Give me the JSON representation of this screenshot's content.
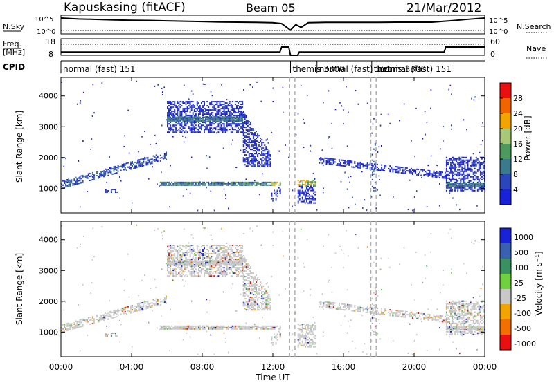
{
  "header": {
    "station": "Kapuskasing (fitACF)",
    "beam": "Beam 05",
    "date": "21/Mar/2012"
  },
  "noise_panel": {
    "left_label": "N.Sky",
    "right_label": "N.Search",
    "left_ticks": [
      "10^5",
      "10^0"
    ],
    "right_ticks": [
      "10^5",
      "10^0"
    ]
  },
  "freq_panel": {
    "left_label_line1": "Freq.",
    "left_label_line2": "[MHz]",
    "right_label": "Nave",
    "left_ticks": [
      "18",
      "8"
    ],
    "right_ticks": [
      "60",
      "0"
    ]
  },
  "cpid": {
    "label": "CPID",
    "segments": [
      {
        "text": "normal (fast) 151",
        "start_h": 0.0
      },
      {
        "text": "themis 3300",
        "start_h": 13.0
      },
      {
        "text": "normal (fast) 151",
        "start_h": 14.5
      },
      {
        "text": "themis 3300",
        "start_h": 17.6
      },
      {
        "text": "normal (fast) 151",
        "start_h": 17.9
      }
    ]
  },
  "x_axis": {
    "label": "Time UT",
    "range_hours": [
      0,
      24
    ],
    "tick_hours": [
      0,
      4,
      8,
      12,
      16,
      20,
      24
    ],
    "tick_labels": [
      "00:00",
      "04:00",
      "08:00",
      "12:00",
      "16:00",
      "20:00",
      "00:00"
    ]
  },
  "power_panel": {
    "ylabel": "Slant Range [km]",
    "yrange_km": [
      200,
      4600
    ],
    "yticks": [
      "1000",
      "2000",
      "3000",
      "4000"
    ],
    "cbar_label": "Power [dB]",
    "cbar_ticks": [
      "4",
      "8",
      "12",
      "16",
      "20",
      "24",
      "28"
    ],
    "cbar_colors": [
      "#1a22d8",
      "#2a46b8",
      "#3a7a8c",
      "#4e9a5c",
      "#a8c878",
      "#f2a400",
      "#f26400",
      "#e81010"
    ]
  },
  "velocity_panel": {
    "ylabel": "Slant Range [km]",
    "yrange_km": [
      200,
      4600
    ],
    "yticks": [
      "1000",
      "2000",
      "3000",
      "4000"
    ],
    "cbar_label": "Velocity [m s⁻¹]",
    "cbar_ticks": [
      "1000",
      "500",
      "100",
      "25",
      "-25",
      "-100",
      "-500",
      "-1000"
    ],
    "cbar_colors": [
      "#1a22d8",
      "#3a60b0",
      "#3a9060",
      "#70d040",
      "#c8c8c8",
      "#f2a400",
      "#f27000",
      "#e81010"
    ]
  },
  "chart_data": {
    "type": "heatmap",
    "x_unit": "hours UT",
    "y_unit": "km",
    "noise_sky": {
      "x": [
        0,
        1,
        2,
        3,
        4,
        5,
        6,
        7,
        8,
        9,
        10,
        11,
        12,
        12.5,
        13,
        13.3,
        13.6,
        14,
        15,
        16,
        17,
        18,
        19,
        20,
        21,
        22,
        23,
        24
      ],
      "y_frac": [
        0.85,
        0.8,
        0.78,
        0.75,
        0.73,
        0.72,
        0.7,
        0.68,
        0.66,
        0.64,
        0.63,
        0.62,
        0.6,
        0.55,
        0.2,
        0.5,
        0.35,
        0.6,
        0.62,
        0.62,
        0.62,
        0.62,
        0.63,
        0.63,
        0.63,
        0.7,
        0.78,
        0.85
      ]
    },
    "freq_MHz": {
      "x": [
        0,
        12.4,
        12.5,
        12.9,
        13.0,
        13.4,
        13.5,
        21.7,
        21.8,
        24
      ],
      "y": [
        10,
        10,
        13,
        13,
        8,
        8,
        10,
        10,
        13,
        13
      ]
    },
    "nave": {
      "x": [
        0,
        24
      ],
      "y": [
        40,
        40
      ]
    },
    "power_features": [
      {
        "t": [
          0.0,
          6.0
        ],
        "r": [
          1100,
          2050
        ],
        "kind": "rising_band",
        "p": 8
      },
      {
        "t": [
          2.5,
          3.2
        ],
        "r": [
          850,
          950
        ],
        "kind": "band",
        "p": 8
      },
      {
        "t": [
          6.0,
          10.3
        ],
        "r": [
          2800,
          3800
        ],
        "kind": "block",
        "p": 6
      },
      {
        "t": [
          6.0,
          10.3
        ],
        "r": [
          3150,
          3300
        ],
        "kind": "line",
        "p": 14
      },
      {
        "t": [
          10.3,
          11.9
        ],
        "r": [
          1700,
          3500
        ],
        "kind": "falling_block",
        "p": 6
      },
      {
        "t": [
          5.6,
          11.9
        ],
        "r": [
          1080,
          1180
        ],
        "kind": "line",
        "p": 14
      },
      {
        "t": [
          11.9,
          12.4
        ],
        "r": [
          1080,
          1200
        ],
        "kind": "block",
        "p": 22
      },
      {
        "t": [
          11.9,
          12.4
        ],
        "r": [
          500,
          1100
        ],
        "kind": "sparse",
        "p": 6
      },
      {
        "t": [
          13.4,
          14.4
        ],
        "r": [
          1050,
          1250
        ],
        "kind": "block",
        "p": 22
      },
      {
        "t": [
          13.4,
          14.4
        ],
        "r": [
          500,
          1050
        ],
        "kind": "block",
        "p": 6
      },
      {
        "t": [
          14.6,
          21.8
        ],
        "r": [
          1400,
          1900
        ],
        "kind": "falling_band",
        "p": 6
      },
      {
        "t": [
          17.6,
          17.8
        ],
        "r": [
          900,
          2500
        ],
        "kind": "sparse",
        "p": 10
      },
      {
        "t": [
          21.8,
          24.0
        ],
        "r": [
          900,
          2000
        ],
        "kind": "block",
        "p": 6
      },
      {
        "t": [
          21.8,
          24.0
        ],
        "r": [
          1050,
          1150
        ],
        "kind": "line",
        "p": 14
      }
    ]
  }
}
